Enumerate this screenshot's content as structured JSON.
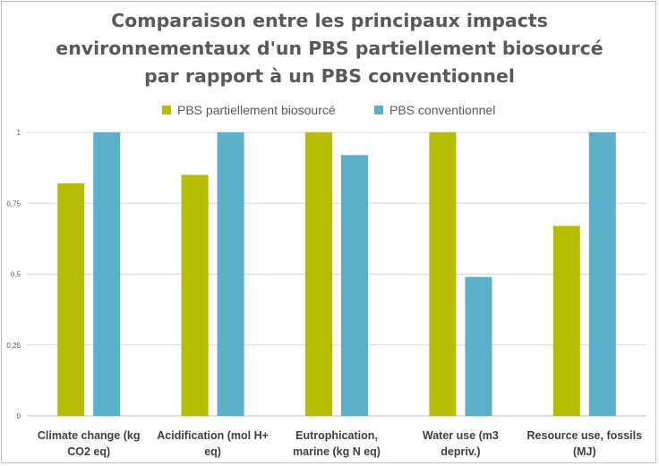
{
  "chart_data": {
    "type": "bar",
    "title_lines": [
      "Comparaison entre les principaux impacts",
      "environnementaux d'un PBS partiellement biosourcé",
      "par rapport à un PBS conventionnel"
    ],
    "categories": [
      [
        "Climate change (kg",
        "CO2 eq)"
      ],
      [
        "Acidification (mol H+",
        "eq)"
      ],
      [
        "Eutrophication,",
        "marine (kg N eq)"
      ],
      [
        "Water use (m3",
        "depriv.)"
      ],
      [
        "Resource use, fossils",
        "(MJ)"
      ]
    ],
    "series": [
      {
        "name": "PBS partiellement biosourcé",
        "color": "#b5bd00",
        "values": [
          0.82,
          0.85,
          1.0,
          1.0,
          0.67
        ]
      },
      {
        "name": "PBS conventionnel",
        "color": "#5aafc9",
        "values": [
          1.0,
          1.0,
          0.92,
          0.49,
          1.0
        ]
      }
    ],
    "yticks": [
      "0",
      "0,25",
      "0,5",
      "0,75",
      "1"
    ],
    "ylim": [
      0,
      1
    ],
    "grid": true,
    "legend_position": "top"
  }
}
